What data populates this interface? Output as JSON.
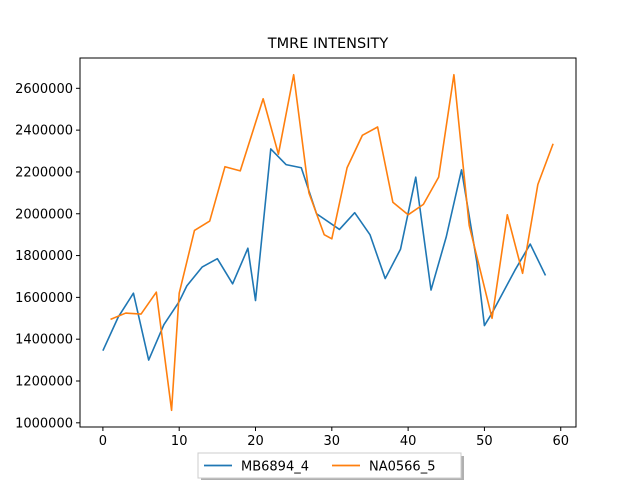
{
  "chart_data": {
    "type": "line",
    "title": "TMRE INTENSITY",
    "xlabel": "",
    "ylabel": "",
    "xlim": [
      -3,
      62
    ],
    "ylim": [
      980000,
      2745000
    ],
    "x_ticks": [
      0,
      10,
      20,
      30,
      40,
      50,
      60
    ],
    "x_tick_labels": [
      "0",
      "10",
      "20",
      "30",
      "40",
      "50",
      "60"
    ],
    "y_ticks": [
      1000000,
      1200000,
      1400000,
      1600000,
      1800000,
      2000000,
      2200000,
      2400000,
      2600000
    ],
    "y_tick_labels": [
      "1000000",
      "1200000",
      "1400000",
      "1600000",
      "1800000",
      "2000000",
      "2200000",
      "2400000",
      "2600000"
    ],
    "grid": false,
    "legend_position": "bottom-center",
    "series": [
      {
        "name": "MB6894_4",
        "color": "#1f77b4",
        "x": [
          0,
          2,
          4,
          6,
          8,
          10,
          11,
          13,
          15,
          17,
          19,
          20,
          22,
          24,
          26,
          28,
          31,
          33,
          35,
          37,
          39,
          41,
          43,
          45,
          47,
          49,
          50,
          51,
          54,
          56,
          58
        ],
        "y": [
          1345000,
          1505000,
          1620000,
          1300000,
          1470000,
          1580000,
          1655000,
          1745000,
          1785000,
          1665000,
          1835000,
          1585000,
          2310000,
          2235000,
          2220000,
          2000000,
          1925000,
          2005000,
          1900000,
          1690000,
          1830000,
          2175000,
          1635000,
          1890000,
          2210000,
          1770000,
          1465000,
          1525000,
          1730000,
          1855000,
          1705000
        ]
      },
      {
        "name": "NA0566_5",
        "color": "#ff7f0e",
        "x": [
          1,
          3,
          5,
          7,
          9,
          10,
          12,
          14,
          16,
          18,
          21,
          23,
          25,
          27,
          29,
          30,
          32,
          34,
          36,
          38,
          40,
          42,
          44,
          46,
          48,
          51,
          53,
          55,
          57,
          59
        ],
        "y": [
          1495000,
          1525000,
          1520000,
          1625000,
          1060000,
          1620000,
          1920000,
          1965000,
          2225000,
          2205000,
          2550000,
          2285000,
          2665000,
          2100000,
          1900000,
          1880000,
          2220000,
          2375000,
          2415000,
          2055000,
          1995000,
          2045000,
          2175000,
          2665000,
          1945000,
          1500000,
          1995000,
          1715000,
          2140000,
          2335000
        ]
      }
    ]
  }
}
